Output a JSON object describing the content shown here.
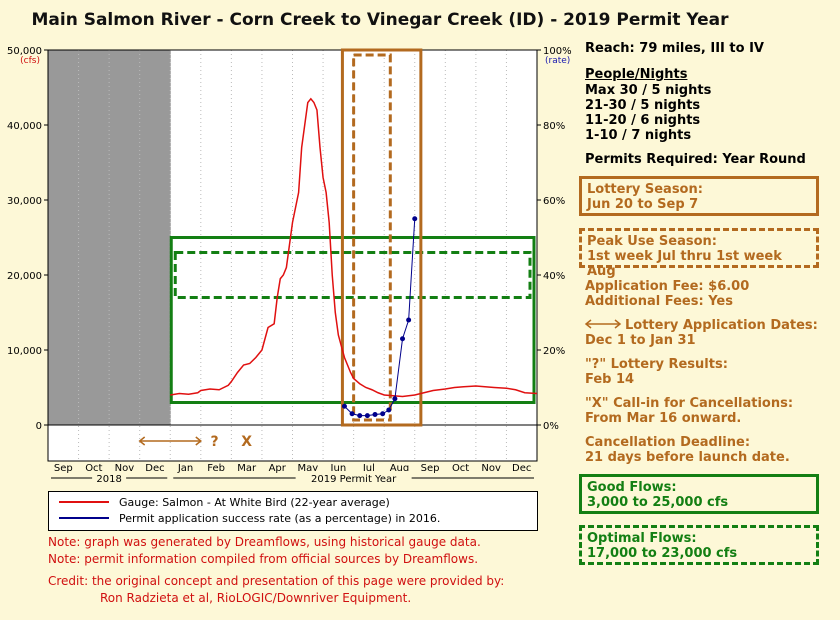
{
  "title": "Main Salmon River - Corn Creek to Vinegar Creek (ID) - 2019 Permit Year",
  "side": {
    "reach": "Reach: 79 miles, III to IV",
    "people_heading": "People/Nights",
    "people": [
      "Max 30 / 5 nights",
      "21-30 / 5 nights",
      "11-20 / 6 nights",
      "1-10 / 7 nights"
    ],
    "permits": "Permits Required: Year Round",
    "lottery_season_1": "Lottery Season:",
    "lottery_season_2": "Jun 20 to Sep 7",
    "peak_1": "Peak Use Season:",
    "peak_2": "1st week Jul thru 1st week Aug",
    "fee_1": "Application Fee: $6.00",
    "fee_2": "Additional Fees: Yes",
    "app_dates_1": "Lottery Application Dates:",
    "app_dates_2": "Dec 1 to Jan 31",
    "results_1": "\"?\" Lottery Results:",
    "results_2": "Feb 14",
    "callin_1": "\"X\" Call-in for Cancellations:",
    "callin_2": "From Mar 16 onward.",
    "deadline_1": "Cancellation Deadline:",
    "deadline_2": "21 days before launch date.",
    "good_1": "Good Flows:",
    "good_2": "3,000 to 25,000 cfs",
    "optimal_1": "Optimal Flows:",
    "optimal_2": "17,000 to 23,000 cfs"
  },
  "legend": {
    "gauge": "Gauge: Salmon - At White Bird (22-year average)",
    "rate": "Permit application success rate (as a percentage) in 2016."
  },
  "notes": {
    "n1": "Note: graph was generated by Dreamflows, using historical gauge data.",
    "n2": "Note: permit information compiled from official sources by Dreamflows.",
    "credit1": "Credit: the original concept and presentation of this page were provided by:",
    "credit2": "Ron Radzieta et al, RioLOGIC/Downriver Equipment."
  },
  "colors": {
    "gauge": "#e01010",
    "rate": "#00008b",
    "good": "#137f13",
    "season": "#b36a1f",
    "label_red": "#d01010",
    "label_blue": "#1a1ab0",
    "shade": "#999999"
  },
  "chart_data": {
    "type": "line",
    "x_months": [
      "Sep",
      "Oct",
      "Nov",
      "Dec",
      "Jan",
      "Feb",
      "Mar",
      "Apr",
      "May",
      "Jun",
      "Jul",
      "Aug",
      "Sep",
      "Oct",
      "Nov",
      "Dec"
    ],
    "year_labels": [
      "2018",
      "2019 Permit Year"
    ],
    "y_left": {
      "label": "(cfs)",
      "ylim": [
        0,
        50000
      ],
      "ticks": [
        "0",
        "10,000",
        "20,000",
        "30,000",
        "40,000",
        "50,000"
      ]
    },
    "y_right": {
      "label": "(rate)",
      "ylim": [
        0,
        100
      ],
      "ticks": [
        "0%",
        "20%",
        "40%",
        "60%",
        "80%",
        "100%"
      ]
    },
    "markers": {
      "arrow": "Dec 1 to Jan 31",
      "question": "?",
      "x": "X"
    },
    "series": [
      {
        "name": "Gauge: Salmon - At White Bird (22-year average)",
        "axis": "left",
        "x": [
          4.0,
          4.3,
          4.6,
          4.9,
          5.0,
          5.3,
          5.6,
          5.9,
          6.0,
          6.2,
          6.4,
          6.6,
          6.8,
          7.0,
          7.1,
          7.2,
          7.4,
          7.5,
          7.6,
          7.7,
          7.8,
          7.9,
          8.0,
          8.1,
          8.2,
          8.3,
          8.4,
          8.5,
          8.6,
          8.7,
          8.8,
          8.9,
          9.0,
          9.1,
          9.2,
          9.3,
          9.4,
          9.5,
          9.6,
          9.7,
          9.8,
          9.9,
          10.0,
          10.2,
          10.4,
          10.6,
          10.8,
          11.0,
          11.3,
          11.6,
          12.0,
          12.3,
          12.6,
          13.0,
          13.3,
          13.6,
          14.0,
          14.3,
          14.6,
          15.0,
          15.3,
          15.6,
          16.0
        ],
        "values": [
          4000,
          4200,
          4100,
          4300,
          4600,
          4800,
          4700,
          5300,
          5800,
          7000,
          8000,
          8200,
          9000,
          10000,
          11500,
          13000,
          13500,
          17000,
          19500,
          20000,
          21000,
          24000,
          27000,
          29000,
          31000,
          37000,
          40000,
          43000,
          43500,
          43000,
          42000,
          37000,
          33000,
          31000,
          27000,
          20000,
          15000,
          12000,
          10500,
          9000,
          8000,
          7000,
          6200,
          5500,
          5000,
          4700,
          4300,
          4000,
          3900,
          3800,
          4000,
          4300,
          4600,
          4800,
          5000,
          5100,
          5200,
          5100,
          5000,
          4900,
          4700,
          4300,
          4200
        ]
      },
      {
        "name": "Permit application success rate (as a percentage) in 2016.",
        "axis": "right",
        "x": [
          9.7,
          9.95,
          10.2,
          10.45,
          10.7,
          10.95,
          11.15,
          11.35,
          11.6,
          11.8,
          12.0
        ],
        "values": [
          5,
          3,
          2.5,
          2.5,
          2.8,
          3,
          4,
          7,
          23,
          28,
          55
        ]
      }
    ],
    "good_flows": [
      3000,
      25000
    ],
    "optimal_flows": [
      17000,
      23000
    ],
    "lottery_season": [
      "Jun 20",
      "Sep 7"
    ],
    "peak_season": [
      "1st week Jul",
      "1st week Aug"
    ]
  }
}
